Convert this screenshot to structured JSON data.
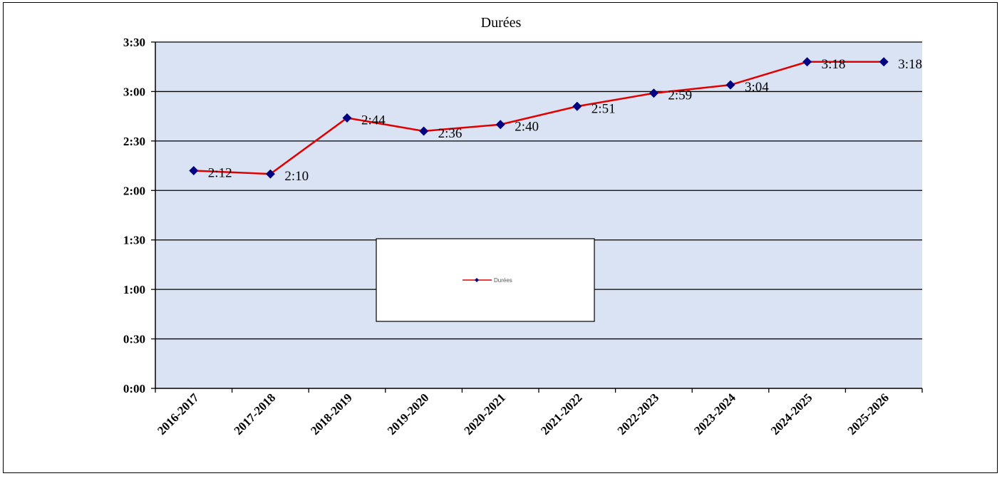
{
  "chart_data": {
    "type": "line",
    "title": "Durées",
    "categories": [
      "2016-2017",
      "2017-2018",
      "2018-2019",
      "2019-2020",
      "2020-2021",
      "2021-2022",
      "2022-2023",
      "2023-2024",
      "2024-2025",
      "2025-2026"
    ],
    "series": [
      {
        "name": "Durées",
        "values": [
          "2:12",
          "2:10",
          "2:44",
          "2:36",
          "2:40",
          "2:51",
          "2:59",
          "3:04",
          "3:18",
          "3:18"
        ],
        "color": "#e00000",
        "marker_color": "#000080"
      }
    ],
    "y_ticks": [
      "0:00",
      "0:30",
      "1:00",
      "1:30",
      "2:00",
      "2:30",
      "3:00",
      "3:30"
    ],
    "ylim": [
      "0:00",
      "3:30"
    ],
    "grid": true,
    "legend": "center",
    "plot_background": "#dae3f3"
  }
}
